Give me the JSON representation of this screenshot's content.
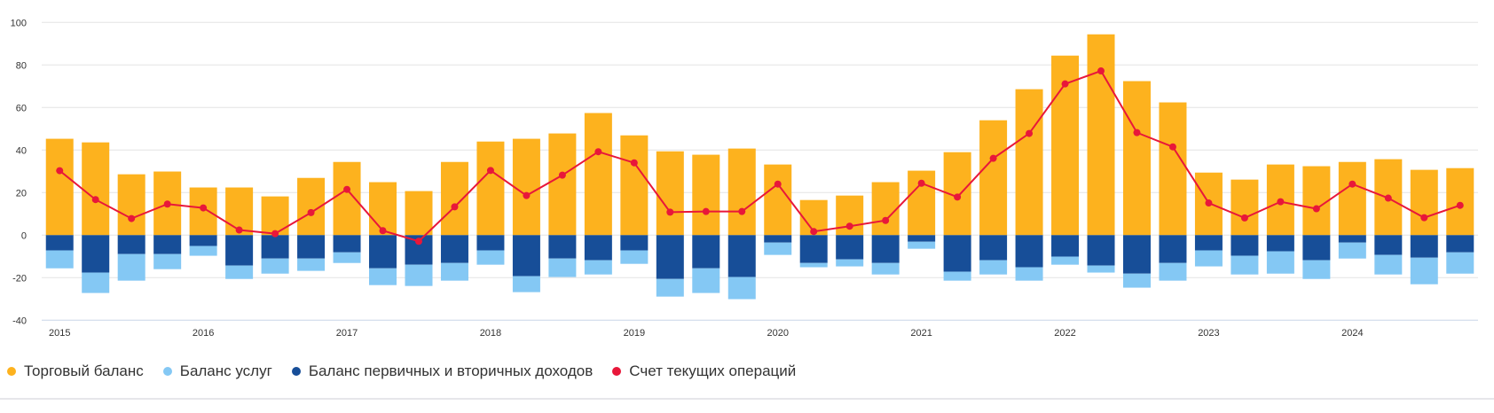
{
  "chart_data": {
    "type": "bar",
    "stacked": true,
    "ylim": [
      -40,
      100
    ],
    "yticks": [
      -40,
      -20,
      0,
      20,
      40,
      60,
      80,
      100
    ],
    "grid": true,
    "legend_position": "bottom-left",
    "categories": [
      "2015 Q1",
      "2015 Q2",
      "2015 Q3",
      "2015 Q4",
      "2016 Q1",
      "2016 Q2",
      "2016 Q3",
      "2016 Q4",
      "2017 Q1",
      "2017 Q2",
      "2017 Q3",
      "2017 Q4",
      "2018 Q1",
      "2018 Q2",
      "2018 Q3",
      "2018 Q4",
      "2019 Q1",
      "2019 Q2",
      "2019 Q3",
      "2019 Q4",
      "2020 Q1",
      "2020 Q2",
      "2020 Q3",
      "2020 Q4",
      "2021 Q1",
      "2021 Q2",
      "2021 Q3",
      "2021 Q4",
      "2022 Q1",
      "2022 Q2",
      "2022 Q3",
      "2022 Q4",
      "2023 Q1",
      "2023 Q2",
      "2023 Q3",
      "2023 Q4",
      "2024 Q1",
      "2024 Q2",
      "2024 Q3",
      "2024 Q4"
    ],
    "xtick_labels": [
      "2015",
      "2016",
      "2017",
      "2018",
      "2019",
      "2020",
      "2021",
      "2022",
      "2023",
      "2024"
    ],
    "series": [
      {
        "name": "Торговый баланс",
        "type": "bar",
        "color": "#FDB21E",
        "values": [
          45.3,
          43.6,
          28.6,
          29.9,
          22.4,
          22.4,
          18.2,
          26.9,
          34.4,
          24.9,
          20.7,
          34.4,
          44.0,
          45.3,
          47.8,
          57.4,
          46.9,
          39.4,
          37.8,
          40.7,
          33.2,
          16.5,
          18.6,
          24.9,
          30.3,
          39.0,
          54.0,
          68.6,
          84.4,
          94.4,
          72.4,
          62.4,
          29.4,
          26.1,
          33.2,
          32.4,
          34.4,
          35.7,
          30.7,
          31.5
        ]
      },
      {
        "name": "Баланс услуг",
        "type": "bar",
        "color": "#84C8F4",
        "values": [
          -8.4,
          -9.6,
          -12.5,
          -7.1,
          -4.6,
          -6.3,
          -7.1,
          -5.8,
          -5.0,
          -7.9,
          -10.0,
          -8.3,
          -6.7,
          -7.5,
          -8.7,
          -6.7,
          -6.3,
          -8.3,
          -11.6,
          -10.4,
          -5.8,
          -2.0,
          -3.3,
          -5.4,
          -3.3,
          -4.2,
          -6.7,
          -6.3,
          -3.8,
          -3.3,
          -6.6,
          -8.3,
          -7.5,
          -8.8,
          -10.5,
          -8.8,
          -7.5,
          -9.2,
          -12.5,
          -10.0
        ]
      },
      {
        "name": "Баланс первичных и вторичных доходов",
        "type": "bar",
        "color": "#174E98",
        "values": [
          -7.2,
          -17.6,
          -8.9,
          -8.9,
          -5.1,
          -14.3,
          -11.0,
          -11.0,
          -8.1,
          -15.6,
          -13.9,
          -13.1,
          -7.2,
          -19.3,
          -11.0,
          -11.8,
          -7.2,
          -20.6,
          -15.6,
          -19.7,
          -3.5,
          -13.1,
          -11.4,
          -13.1,
          -3.1,
          -17.2,
          -11.8,
          -15.1,
          -10.1,
          -14.3,
          -18.1,
          -13.1,
          -7.2,
          -9.7,
          -7.6,
          -11.8,
          -3.5,
          -9.3,
          -10.6,
          -8.1
        ]
      },
      {
        "name": "Счет текущих операций",
        "type": "line",
        "color": "#E8173A",
        "values": [
          30.3,
          16.7,
          7.8,
          14.6,
          12.8,
          2.4,
          0.7,
          10.6,
          21.5,
          2.1,
          -2.9,
          13.3,
          30.4,
          18.6,
          28.2,
          39.2,
          34.0,
          10.8,
          11.1,
          11.1,
          24.0,
          1.7,
          4.2,
          6.9,
          24.4,
          17.9,
          36.1,
          47.8,
          71.1,
          77.2,
          48.2,
          41.5,
          15.1,
          8.1,
          15.7,
          12.4,
          24.0,
          17.4,
          8.2,
          14.0
        ]
      }
    ]
  }
}
